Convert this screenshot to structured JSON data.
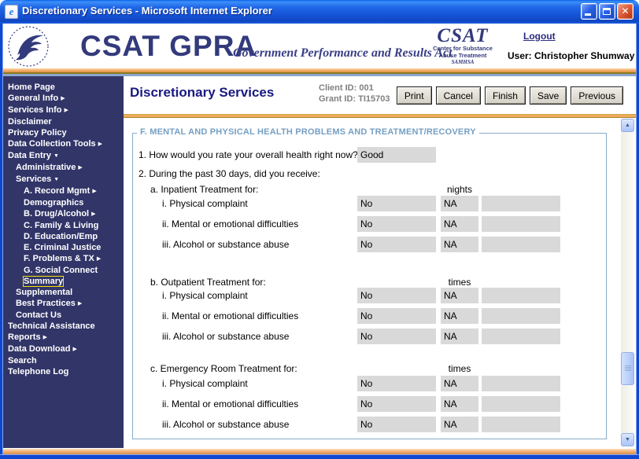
{
  "window": {
    "title": "Discretionary Services - Microsoft Internet Explorer",
    "controls": [
      "minimize",
      "maximize",
      "close"
    ]
  },
  "header": {
    "brand_title": "CSAT GPRA",
    "brand_tagline": "Government Performance and Results Act",
    "csat_logo": {
      "name": "CSAT",
      "line1": "Center for Substance",
      "line2": "Abuse Treatment",
      "line3": "SAMHSA"
    },
    "logout_label": "Logout",
    "user_label": "User: Christopher Shumway"
  },
  "sidebar": {
    "items": [
      {
        "label": "Home Page",
        "level": 0,
        "arrow": "none",
        "focused": false
      },
      {
        "label": "General Info",
        "level": 0,
        "arrow": "right",
        "focused": false
      },
      {
        "label": "Services Info",
        "level": 0,
        "arrow": "right",
        "focused": false
      },
      {
        "label": "Disclaimer",
        "level": 0,
        "arrow": "none",
        "focused": false
      },
      {
        "label": "Privacy Policy",
        "level": 0,
        "arrow": "none",
        "focused": false
      },
      {
        "label": "Data Collection Tools",
        "level": 0,
        "arrow": "right",
        "focused": false
      },
      {
        "label": "Data Entry",
        "level": 0,
        "arrow": "down",
        "focused": false
      },
      {
        "label": "Administrative",
        "level": 1,
        "arrow": "right",
        "focused": false
      },
      {
        "label": "Services",
        "level": 1,
        "arrow": "down",
        "focused": false
      },
      {
        "label": "A. Record Mgmt",
        "level": 2,
        "arrow": "right",
        "focused": false
      },
      {
        "label": "Demographics",
        "level": 2,
        "arrow": "none",
        "focused": false
      },
      {
        "label": "B. Drug/Alcohol",
        "level": 2,
        "arrow": "right",
        "focused": false
      },
      {
        "label": "C. Family & Living",
        "level": 2,
        "arrow": "none",
        "focused": false
      },
      {
        "label": "D. Education/Emp",
        "level": 2,
        "arrow": "none",
        "focused": false
      },
      {
        "label": "E. Criminal Justice",
        "level": 2,
        "arrow": "none",
        "focused": false
      },
      {
        "label": "F. Problems & TX",
        "level": 2,
        "arrow": "right",
        "focused": false
      },
      {
        "label": "G. Social Connect",
        "level": 2,
        "arrow": "none",
        "focused": false
      },
      {
        "label": "Summary",
        "level": 2,
        "arrow": "none",
        "focused": true
      },
      {
        "label": "Supplemental",
        "level": 1,
        "arrow": "none",
        "focused": false
      },
      {
        "label": "Best Practices",
        "level": 1,
        "arrow": "right",
        "focused": false
      },
      {
        "label": "Contact Us",
        "level": 1,
        "arrow": "none",
        "focused": false
      },
      {
        "label": "Technical Assistance",
        "level": 0,
        "arrow": "none",
        "focused": false
      },
      {
        "label": "Reports",
        "level": 0,
        "arrow": "right",
        "focused": false
      },
      {
        "label": "Data Download",
        "level": 0,
        "arrow": "right",
        "focused": false
      },
      {
        "label": "Search",
        "level": 0,
        "arrow": "none",
        "focused": false
      },
      {
        "label": "Telephone Log",
        "level": 0,
        "arrow": "none",
        "focused": false
      }
    ]
  },
  "main": {
    "page_title": "Discretionary Services",
    "client_id": "Client ID: 001",
    "grant_id": "Grant ID: TI15703",
    "toolbar": [
      {
        "label": "Print"
      },
      {
        "label": "Cancel"
      },
      {
        "label": "Finish"
      },
      {
        "label": "Save"
      },
      {
        "label": "Previous"
      }
    ],
    "form": {
      "legend": "F. MENTAL AND PHYSICAL HEALTH PROBLEMS AND TREATMENT/RECOVERY",
      "q1_label": "1. How would you rate your overall health right now?",
      "q1_value": "Good",
      "q2_label": "2. During the past 30 days, did you receive:",
      "sections": [
        {
          "label": "a. Inpatient Treatment for:",
          "unit": "nights",
          "rows": [
            {
              "label": "i. Physical complaint",
              "answer": "No",
              "na": "NA",
              "count": ""
            },
            {
              "label": "ii. Mental or emotional difficulties",
              "answer": "No",
              "na": "NA",
              "count": ""
            },
            {
              "label": "iii. Alcohol or substance abuse",
              "answer": "No",
              "na": "NA",
              "count": ""
            }
          ]
        },
        {
          "label": "b. Outpatient Treatment for:",
          "unit": "times",
          "rows": [
            {
              "label": "i. Physical complaint",
              "answer": "No",
              "na": "NA",
              "count": ""
            },
            {
              "label": "ii. Mental or emotional difficulties",
              "answer": "No",
              "na": "NA",
              "count": ""
            },
            {
              "label": "iii. Alcohol or substance abuse",
              "answer": "No",
              "na": "NA",
              "count": ""
            }
          ]
        },
        {
          "label": "c. Emergency Room Treatment for:",
          "unit": "times",
          "rows": [
            {
              "label": "i. Physical complaint",
              "answer": "No",
              "na": "NA",
              "count": ""
            },
            {
              "label": "ii. Mental or emotional difficulties",
              "answer": "No",
              "na": "NA",
              "count": ""
            },
            {
              "label": "iii. Alcohol or substance abuse",
              "answer": "No",
              "na": "NA",
              "count": ""
            }
          ]
        }
      ]
    }
  },
  "colors": {
    "titlebar_blue": "#1553d6",
    "frame_blue": "#1047cf",
    "sidebar_navy": "#323568",
    "brand_navy": "#333a7c",
    "page_title_navy": "#191980",
    "legend_blue": "#769fc4",
    "field_gray": "#d9d9d9",
    "separator_orange": "#f0aa5c",
    "id_text_gray": "#808080",
    "focus_yellow": "#f2e20a"
  }
}
